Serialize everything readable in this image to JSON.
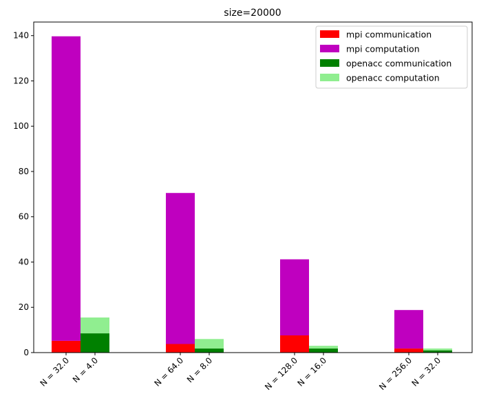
{
  "chart_data": {
    "type": "bar",
    "stacked": true,
    "title": "size=20000",
    "xlabel": "",
    "ylabel": "",
    "ylim": [
      0,
      146
    ],
    "yticks": [
      0,
      20,
      40,
      60,
      80,
      100,
      120,
      140
    ],
    "groups": [
      {
        "mpi_label": "N = 32.0",
        "openacc_label": "N = 4.0",
        "mpi_communication": 5.2,
        "mpi_computation": 134.5,
        "openacc_communication": 8.5,
        "openacc_computation": 7.0
      },
      {
        "mpi_label": "N = 64.0",
        "openacc_label": "N = 8.0",
        "mpi_communication": 3.8,
        "mpi_computation": 66.7,
        "openacc_communication": 1.8,
        "openacc_computation": 4.2
      },
      {
        "mpi_label": "N = 128.0",
        "openacc_label": "N = 16.0",
        "mpi_communication": 7.6,
        "mpi_computation": 33.6,
        "openacc_communication": 1.8,
        "openacc_computation": 1.2
      },
      {
        "mpi_label": "N = 256.0",
        "openacc_label": "N = 32.0",
        "mpi_communication": 1.8,
        "mpi_computation": 17.0,
        "openacc_communication": 1.0,
        "openacc_computation": 0.8
      }
    ],
    "series": [
      {
        "key": "mpi_communication",
        "name": "mpi communication",
        "color": "#ff0000"
      },
      {
        "key": "mpi_computation",
        "name": "mpi computation",
        "color": "#bf00bf"
      },
      {
        "key": "openacc_communication",
        "name": "openacc communication",
        "color": "#008000"
      },
      {
        "key": "openacc_computation",
        "name": "openacc computation",
        "color": "#90ee90"
      }
    ],
    "legend_position": "top-right",
    "grid": false
  }
}
